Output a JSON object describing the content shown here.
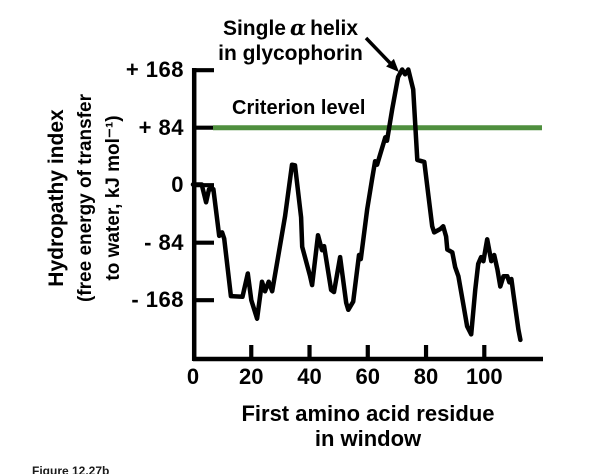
{
  "figure": {
    "caption": "Figure 12.27b"
  },
  "chart_data": {
    "type": "line",
    "xlabel": "First amino acid residue in window",
    "xlabel_lines": [
      "First amino acid residue",
      "in window"
    ],
    "ylabel": "Hydropathy index (free energy of transfer to water, kJ mol⁻¹)",
    "ylabel_lines": [
      "Hydropathy index",
      "(free energy of transfer",
      "to water, kJ mol⁻¹)"
    ],
    "xlim": [
      0,
      120
    ],
    "ylim": [
      -252,
      180
    ],
    "grid": false,
    "legend": "none",
    "x_ticks": [
      0,
      20,
      40,
      60,
      80,
      100
    ],
    "y_ticks": [
      {
        "value": 168,
        "label": "+ 168"
      },
      {
        "value": 84,
        "label": "+ 84"
      },
      {
        "value": 0,
        "label": "0"
      },
      {
        "value": -84,
        "label": "- 84"
      },
      {
        "value": -168,
        "label": "- 168"
      }
    ],
    "criterion": {
      "label": "Criterion level",
      "level": 84,
      "color": "#4f8f3e"
    },
    "annotation": {
      "line1_parts": [
        "Single",
        "α",
        "helix"
      ],
      "line2": "in glycophorin",
      "target": {
        "residue": 73,
        "value": 168
      }
    },
    "curve_color": "#000000",
    "series": [
      {
        "name": "glycophorin hydropathy",
        "points": [
          [
            0,
            1
          ],
          [
            3,
            1
          ],
          [
            4.5,
            -25
          ],
          [
            5.5,
            -6
          ],
          [
            7,
            -6
          ],
          [
            9,
            -74
          ],
          [
            10,
            -69
          ],
          [
            10.7,
            -78
          ],
          [
            13,
            -162
          ],
          [
            17,
            -163
          ],
          [
            18.8,
            -129
          ],
          [
            20,
            -168
          ],
          [
            22,
            -195
          ],
          [
            23.7,
            -141
          ],
          [
            24.7,
            -155
          ],
          [
            26,
            -141
          ],
          [
            27.2,
            -155
          ],
          [
            31.6,
            -45
          ],
          [
            34,
            30
          ],
          [
            35,
            29
          ],
          [
            37.1,
            -47
          ],
          [
            37.5,
            -90
          ],
          [
            40.2,
            -133
          ],
          [
            40.9,
            -146
          ],
          [
            42.9,
            -73
          ],
          [
            44.3,
            -95
          ],
          [
            45,
            -89
          ],
          [
            47.4,
            -153
          ],
          [
            48.4,
            -156
          ],
          [
            50.5,
            -105
          ],
          [
            52.6,
            -172
          ],
          [
            53.3,
            -182
          ],
          [
            55,
            -170
          ],
          [
            57,
            -102
          ],
          [
            57.6,
            -108
          ],
          [
            59.8,
            -35
          ],
          [
            61.5,
            9
          ],
          [
            62.5,
            35
          ],
          [
            63.2,
            30
          ],
          [
            66,
            70
          ],
          [
            66.6,
            65
          ],
          [
            68.4,
            111
          ],
          [
            70.4,
            158
          ],
          [
            71.8,
            169
          ],
          [
            72.8,
            162
          ],
          [
            73.9,
            169
          ],
          [
            75.6,
            140
          ],
          [
            76.6,
            67
          ],
          [
            77,
            37
          ],
          [
            79.4,
            34
          ],
          [
            80.8,
            -15
          ],
          [
            82.1,
            -60
          ],
          [
            82.8,
            -69
          ],
          [
            84.9,
            -64
          ],
          [
            85.9,
            -60
          ],
          [
            86.9,
            -75
          ],
          [
            87.3,
            -94
          ],
          [
            89,
            -98
          ],
          [
            90,
            -120
          ],
          [
            91.1,
            -133
          ],
          [
            92.8,
            -174
          ],
          [
            94.1,
            -206
          ],
          [
            95.5,
            -218
          ],
          [
            96.9,
            -152
          ],
          [
            97.9,
            -115
          ],
          [
            98.9,
            -105
          ],
          [
            99.7,
            -111
          ],
          [
            101,
            -79
          ],
          [
            102.4,
            -111
          ],
          [
            103.4,
            -102
          ],
          [
            104.5,
            -123
          ],
          [
            105.5,
            -148
          ],
          [
            106.6,
            -133
          ],
          [
            107.9,
            -133
          ],
          [
            108.6,
            -142
          ],
          [
            109.3,
            -137
          ],
          [
            110,
            -159
          ],
          [
            111.7,
            -211
          ],
          [
            112.4,
            -226
          ]
        ]
      }
    ]
  }
}
